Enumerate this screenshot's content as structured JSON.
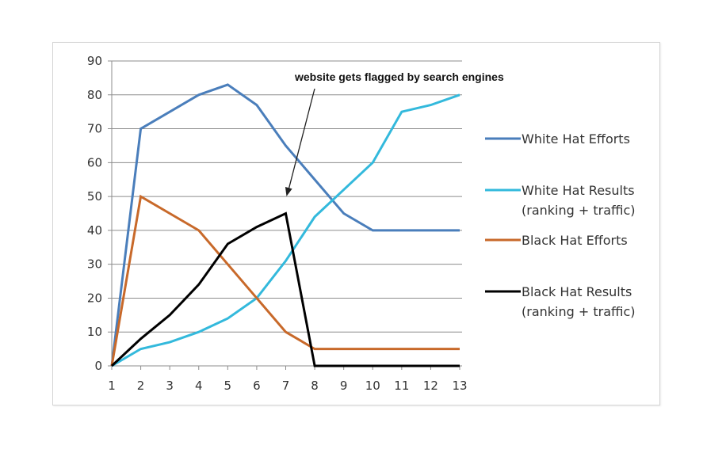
{
  "chart_data": {
    "type": "line",
    "title": "",
    "xlabel": "",
    "ylabel": "",
    "x": [
      1,
      2,
      3,
      4,
      5,
      6,
      7,
      8,
      9,
      10,
      11,
      12,
      13
    ],
    "ylim": [
      0,
      90
    ],
    "yticks": [
      0,
      10,
      20,
      30,
      40,
      50,
      60,
      70,
      80,
      90
    ],
    "grid": "horizontal",
    "legend_position": "right",
    "series": [
      {
        "name": "White Hat Efforts",
        "legend_lines": [
          "White Hat Efforts"
        ],
        "color": "#4a7ebb",
        "values": [
          0,
          70,
          75,
          80,
          83,
          77,
          65,
          55,
          45,
          40,
          40,
          40,
          40
        ]
      },
      {
        "name": "White Hat Results (ranking + traffic)",
        "legend_lines": [
          "White Hat Results",
          "(ranking + traffic)"
        ],
        "color": "#33b9dc",
        "values": [
          0,
          5,
          7,
          10,
          14,
          20,
          31,
          44,
          52,
          60,
          75,
          77,
          80
        ]
      },
      {
        "name": "Black Hat Efforts",
        "legend_lines": [
          "Black Hat Efforts"
        ],
        "color": "#c8692a",
        "values": [
          0,
          50,
          45,
          40,
          30,
          20,
          10,
          5,
          5,
          5,
          5,
          5,
          5
        ]
      },
      {
        "name": "Black Hat Results (ranking + traffic)",
        "legend_lines": [
          "Black Hat Results",
          "(ranking + traffic)"
        ],
        "color": "#000000",
        "values": [
          0,
          8,
          15,
          24,
          36,
          41,
          45,
          0,
          0,
          0,
          0,
          0,
          0
        ]
      }
    ],
    "annotations": [
      {
        "text": "website gets flagged by search engines",
        "points_to": {
          "x": 7,
          "y": 51
        }
      }
    ]
  }
}
